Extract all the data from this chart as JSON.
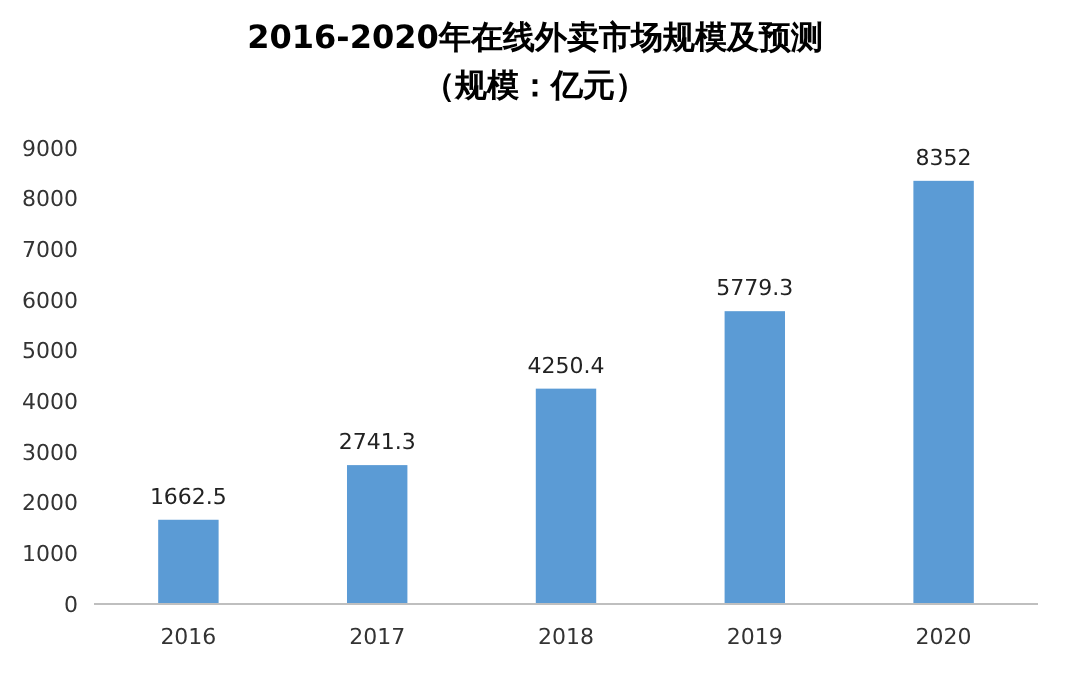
{
  "chart_data": {
    "type": "bar",
    "title": "2016-2020年在线外卖市场规模及预测",
    "subtitle": "（规模：亿元）",
    "categories": [
      "2016",
      "2017",
      "2018",
      "2019",
      "2020"
    ],
    "values": [
      1662.5,
      2741.3,
      4250.4,
      5779.3,
      8352
    ],
    "color": "#5b9bd5",
    "ylim": [
      0,
      9000
    ],
    "yticks": [
      0,
      1000,
      2000,
      3000,
      4000,
      5000,
      6000,
      7000,
      8000,
      9000
    ],
    "data_labels": true
  }
}
